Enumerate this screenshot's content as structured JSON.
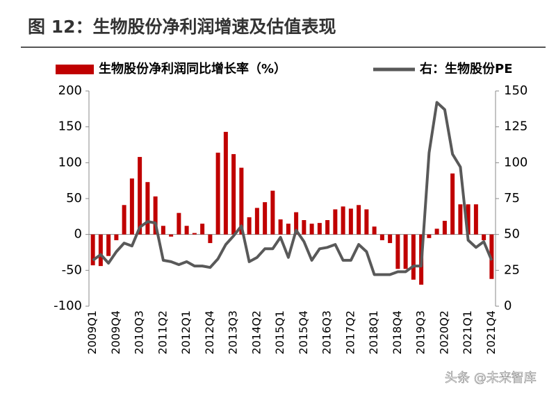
{
  "chart_data": {
    "type": "bar_line",
    "title": "图 12：生物股份净利润增速及估值表现",
    "watermark": "头条 @未来智库",
    "legend": "top",
    "categories": [
      "2009Q1",
      null,
      null,
      "2009Q4",
      null,
      null,
      "2010Q3",
      null,
      null,
      "2011Q2",
      null,
      null,
      "2012Q1",
      null,
      null,
      "2012Q4",
      null,
      null,
      "2013Q3",
      null,
      null,
      "2014Q2",
      null,
      null,
      "2015Q1",
      null,
      null,
      "2015Q4",
      null,
      null,
      "2016Q3",
      null,
      null,
      "2017Q2",
      null,
      null,
      "2018Q1",
      null,
      null,
      "2018Q4",
      null,
      null,
      "2019Q3",
      null,
      null,
      "2020Q2",
      null,
      null,
      "2021Q1",
      null,
      null,
      "2021Q4"
    ],
    "series": [
      {
        "name": "生物股份净利润同比增长率（%）",
        "type": "bar",
        "color": "#c00000",
        "values": [
          -43,
          -44,
          -30,
          -8,
          41,
          78,
          108,
          73,
          53,
          12,
          -3,
          30,
          12,
          2,
          15,
          -12,
          114,
          143,
          112,
          93,
          24,
          37,
          45,
          61,
          21,
          15,
          31,
          20,
          15,
          16,
          20,
          35,
          39,
          36,
          41,
          35,
          11,
          -8,
          -12,
          -48,
          -48,
          -63,
          -70,
          -5,
          8,
          19,
          85,
          42,
          42,
          42,
          -8,
          -62
        ]
      },
      {
        "name": "右：生物股份PE",
        "type": "line",
        "axis": "y2",
        "color": "#595959",
        "values": [
          32,
          36,
          30,
          38,
          44,
          42,
          55,
          59,
          58,
          32,
          31,
          29,
          31,
          28,
          28,
          27,
          33,
          43,
          49,
          56,
          31,
          34,
          40,
          40,
          48,
          34,
          53,
          45,
          32,
          40,
          41,
          43,
          32,
          32,
          43,
          38,
          22,
          22,
          22,
          24,
          24,
          28,
          28,
          107,
          142,
          137,
          106,
          97,
          46,
          41,
          45,
          32
        ]
      }
    ],
    "ylim": [
      -100,
      200
    ],
    "yticks": [
      -100,
      -50,
      0,
      50,
      100,
      150,
      200
    ],
    "y2lim": [
      0,
      150
    ],
    "y2ticks": [
      0,
      25,
      50,
      75,
      100,
      125,
      150
    ]
  }
}
